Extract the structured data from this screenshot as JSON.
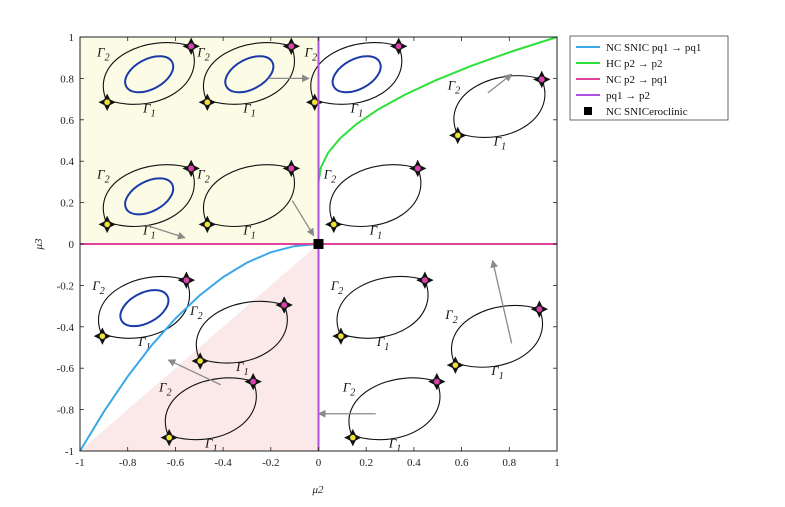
{
  "chart_data": {
    "type": "line",
    "xlabel": "μ2",
    "ylabel": "μ3",
    "xlim": [
      -1,
      1
    ],
    "ylim": [
      -1,
      1
    ],
    "x_ticks": [
      "-1",
      "-0.8",
      "-0.6",
      "-0.4",
      "-0.2",
      "0",
      "0.2",
      "0.4",
      "0.6",
      "0.8",
      "1"
    ],
    "y_ticks": [
      "-1",
      "-0.8",
      "-0.6",
      "-0.4",
      "-0.2",
      "0",
      "0.2",
      "0.4",
      "0.6",
      "0.8",
      "1"
    ],
    "grid": false,
    "legend_placement": "outside-right-top",
    "regions": [
      {
        "color": "#fbfbe6",
        "points": [
          [
            -1,
            0
          ],
          [
            0,
            0
          ],
          [
            0,
            1
          ],
          [
            -1,
            1
          ]
        ]
      },
      {
        "color": "#fbe9e9",
        "points": [
          [
            -1,
            -1
          ],
          [
            -0.9,
            -0.9
          ],
          [
            -0.8,
            -0.8
          ],
          [
            -0.6,
            -0.6
          ],
          [
            -0.4,
            -0.4
          ],
          [
            -0.2,
            -0.2
          ],
          [
            -0.1,
            -0.1
          ],
          [
            0,
            0
          ],
          [
            0,
            -1
          ]
        ]
      }
    ],
    "series": [
      {
        "name": "NC SNIC pq1 → pq1",
        "color": "#3aa8e8",
        "x": [
          -1,
          -0.9,
          -0.8,
          -0.7,
          -0.6,
          -0.5,
          -0.4,
          -0.3,
          -0.2,
          -0.1,
          0
        ],
        "y": [
          -1,
          -0.81,
          -0.64,
          -0.49,
          -0.36,
          -0.25,
          -0.16,
          -0.09,
          -0.04,
          -0.01,
          0
        ]
      },
      {
        "name": "HC p2 → p2",
        "color": "#2ee03a",
        "x": [
          0,
          0.01,
          0.04,
          0.09,
          0.16,
          0.25,
          0.36,
          0.49,
          0.64,
          0.81,
          1
        ],
        "y": [
          0.3,
          0.37,
          0.44,
          0.51,
          0.58,
          0.65,
          0.72,
          0.79,
          0.86,
          0.93,
          1
        ]
      },
      {
        "name": "NC p2 → pq1",
        "color": "#e0449a",
        "x": [
          -1,
          1
        ],
        "y": [
          0,
          0
        ]
      },
      {
        "name": "pq1 → p2",
        "color": "#b04fe0",
        "x": [
          0,
          0
        ],
        "y": [
          -1,
          1
        ]
      }
    ],
    "marker": {
      "name": "NC SNICeroclinic",
      "x": 0,
      "y": 0,
      "color": "#000000"
    },
    "annotations": [
      "Γ2",
      "Γ1"
    ],
    "insets": [
      {
        "x": -0.71,
        "y": 0.82,
        "orbit": true
      },
      {
        "x": -0.29,
        "y": 0.82,
        "orbit": true
      },
      {
        "x": 0.16,
        "y": 0.82,
        "orbit": true
      },
      {
        "x": 0.76,
        "y": 0.66,
        "orbit": false
      },
      {
        "x": -0.71,
        "y": 0.23,
        "orbit": true
      },
      {
        "x": -0.29,
        "y": 0.23,
        "orbit": false
      },
      {
        "x": 0.24,
        "y": 0.23,
        "orbit": false
      },
      {
        "x": -0.73,
        "y": -0.31,
        "orbit": true
      },
      {
        "x": -0.32,
        "y": -0.43,
        "orbit": false
      },
      {
        "x": 0.27,
        "y": -0.31,
        "orbit": false
      },
      {
        "x": 0.75,
        "y": -0.45,
        "orbit": false
      },
      {
        "x": -0.45,
        "y": -0.8,
        "orbit": false
      },
      {
        "x": 0.32,
        "y": -0.8,
        "orbit": false
      }
    ],
    "arrows": [
      {
        "from": [
          -0.21,
          0.8
        ],
        "to": [
          -0.04,
          0.8
        ]
      },
      {
        "from": [
          0.71,
          0.73
        ],
        "to": [
          0.81,
          0.82
        ]
      },
      {
        "from": [
          -0.72,
          0.09
        ],
        "to": [
          -0.56,
          0.03
        ]
      },
      {
        "from": [
          -0.11,
          0.21
        ],
        "to": [
          -0.02,
          0.04
        ]
      },
      {
        "from": [
          0.81,
          -0.48
        ],
        "to": [
          0.73,
          -0.08
        ]
      },
      {
        "from": [
          -0.41,
          -0.68
        ],
        "to": [
          -0.63,
          -0.56
        ]
      },
      {
        "from": [
          0.24,
          -0.82
        ],
        "to": [
          0.0,
          -0.82
        ]
      }
    ]
  }
}
